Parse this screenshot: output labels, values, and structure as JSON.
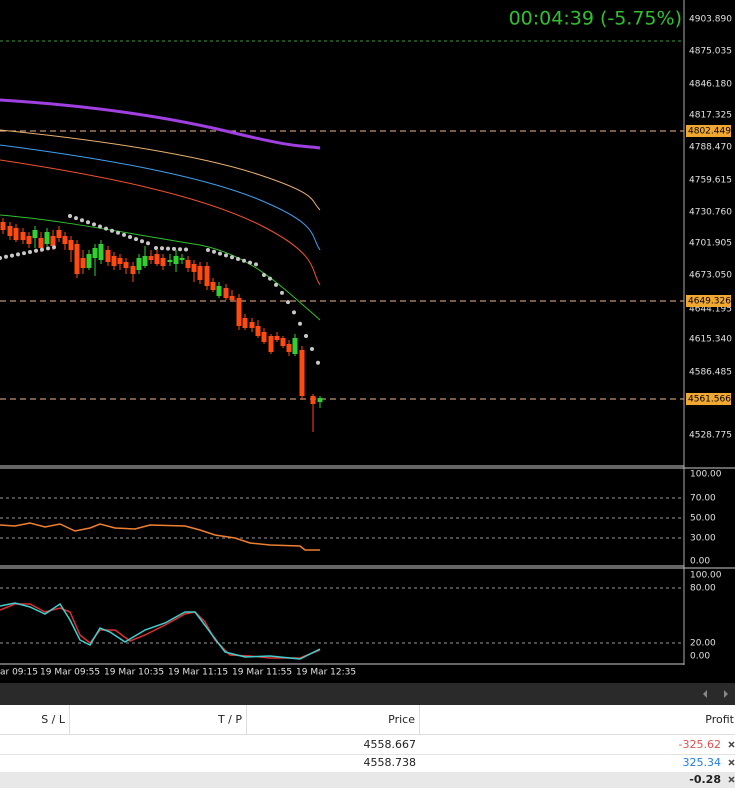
{
  "chart": {
    "timer": "00:04:39 (-5.75%)",
    "price_axis": [
      "4903.890",
      "4875.035",
      "4846.180",
      "4817.325",
      "4788.470",
      "4759.615",
      "4730.760",
      "4701.905",
      "4673.050",
      "4644.195",
      "4615.340",
      "4586.485",
      "4528.775"
    ],
    "price_markers": [
      "4802.449",
      "4649.326",
      "4561.566"
    ],
    "rsi_axis": [
      "100.00",
      "70.00",
      "50.00",
      "30.00",
      "0.00"
    ],
    "stoch_axis": [
      "100.00",
      "80.00",
      "20.00",
      "0.00"
    ],
    "time_axis": [
      "ar 09:15",
      "19 Mar 09:55",
      "19 Mar 10:35",
      "19 Mar 11:15",
      "19 Mar 11:55",
      "19 Mar 12:35"
    ]
  },
  "table": {
    "header": [
      "S / L",
      "T / P",
      "Price",
      "Profit"
    ],
    "rows": [
      [
        "4558.667",
        "-325.62"
      ],
      [
        "4558.738",
        "325.34"
      ]
    ],
    "total": "-0.28"
  }
}
